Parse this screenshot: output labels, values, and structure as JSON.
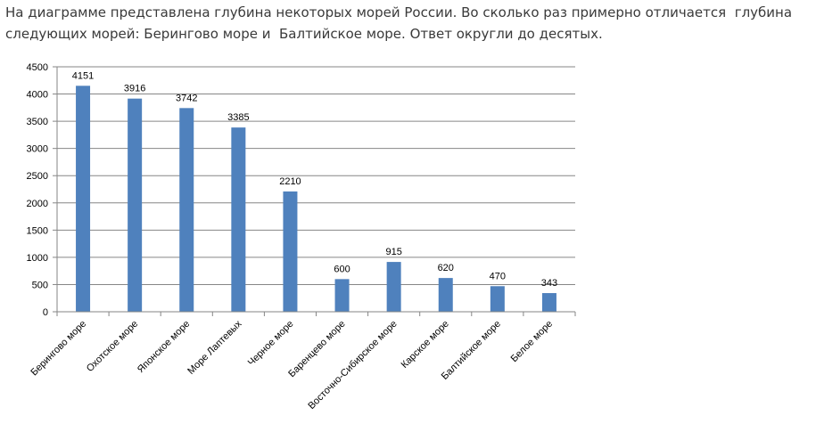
{
  "question": {
    "line1": "На диаграмме представлена глубина некоторых морей России. Во сколько раз примерно отличается  глубина",
    "line2": "следующих морей: Берингово море и  Балтийское море. Ответ округли до десятых."
  },
  "chart_data": {
    "type": "bar",
    "categories": [
      "Берингово море",
      "Охотское море",
      "Японское море",
      "Море Лаптевых",
      "Черное море",
      "Баренцево море",
      "Восточно-Сибирское море",
      "Карское море",
      "Балтийское море",
      "Белое море"
    ],
    "values": [
      4151,
      3916,
      3742,
      3385,
      2210,
      600,
      915,
      620,
      470,
      343
    ],
    "yticks": [
      0,
      500,
      1000,
      1500,
      2000,
      2500,
      3000,
      3500,
      4000,
      4500
    ],
    "ylim": [
      0,
      4500
    ],
    "grid": true,
    "legend": "none",
    "bar_color": "#4f81bd"
  }
}
